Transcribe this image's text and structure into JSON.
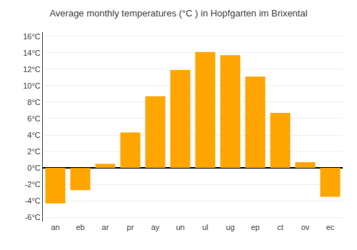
{
  "chart_data": {
    "type": "bar",
    "title": "Average monthly temperatures (°C ) in Hopfgarten im Brixental",
    "categories": [
      "an",
      "eb",
      "ar",
      "pr",
      "ay",
      "un",
      "ul",
      "ug",
      "ep",
      "ct",
      "ov",
      "ec"
    ],
    "values": [
      -4.3,
      -2.7,
      0.5,
      4.3,
      8.7,
      11.9,
      14.1,
      13.7,
      11.1,
      6.7,
      0.7,
      -3.5
    ],
    "color": "#FFA500",
    "ylim": [
      -6.5,
      16.5
    ],
    "yticks": [
      {
        "value": -6,
        "label": "-6°C"
      },
      {
        "value": -4,
        "label": "-4°C"
      },
      {
        "value": -2,
        "label": "-2°C"
      },
      {
        "value": 0,
        "label": "0°C"
      },
      {
        "value": 2,
        "label": "2°C"
      },
      {
        "value": 4,
        "label": "4°C"
      },
      {
        "value": 6,
        "label": "6°C"
      },
      {
        "value": 8,
        "label": "8°C"
      },
      {
        "value": 10,
        "label": "10°C"
      },
      {
        "value": 12,
        "label": "12°C"
      },
      {
        "value": 14,
        "label": "14°C"
      },
      {
        "value": 16,
        "label": "16°C"
      }
    ],
    "grid": true
  }
}
